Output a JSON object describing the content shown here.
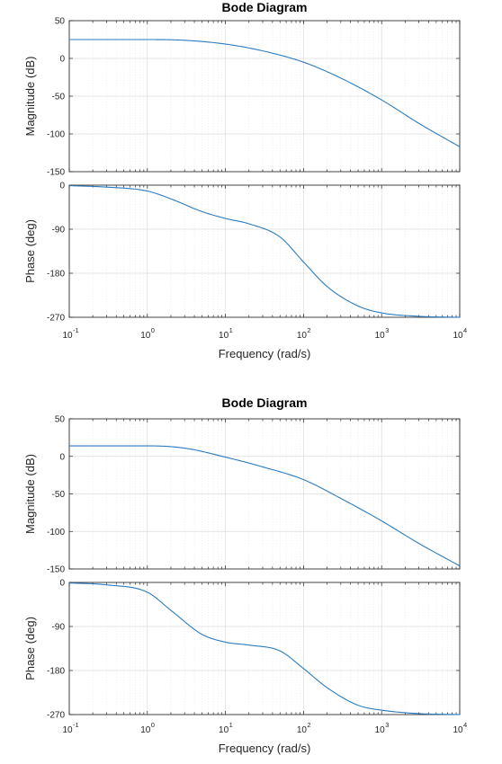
{
  "chart_data": [
    {
      "type": "line",
      "title": "Bode Diagram",
      "xlabel": "Frequency  (rad/s)",
      "xscale": "log",
      "xlim": [
        0.1,
        10000
      ],
      "x_tick_labels": [
        "10",
        "10",
        "10",
        "10",
        "10",
        "10"
      ],
      "x_tick_exponents": [
        "-1",
        "0",
        "1",
        "2",
        "3",
        "4"
      ],
      "grid": true,
      "magnitude": {
        "ylabel": "Magnitude (dB)",
        "ylim": [
          -150,
          50
        ],
        "yticks": [
          "50",
          "0",
          "-50",
          "-100",
          "-150"
        ],
        "x": [
          0.1,
          1,
          3,
          10,
          30,
          100,
          300,
          1000,
          3000,
          10000
        ],
        "y": [
          25,
          25,
          24,
          19,
          10,
          -5,
          -26,
          -55,
          -86,
          -117
        ]
      },
      "phase": {
        "ylabel": "Phase (deg)",
        "ylim": [
          -270,
          0
        ],
        "yticks": [
          "0",
          "-90",
          "-180",
          "-270"
        ],
        "x": [
          0.1,
          0.3,
          1,
          2,
          5,
          10,
          20,
          50,
          100,
          200,
          500,
          1000,
          3000,
          10000
        ],
        "y": [
          -1,
          -4,
          -12,
          -28,
          -54,
          -68,
          -79,
          -106,
          -157,
          -207,
          -247,
          -261,
          -268,
          -270
        ]
      }
    },
    {
      "type": "line",
      "title": "Bode Diagram",
      "xlabel": "Frequency  (rad/s)",
      "xscale": "log",
      "xlim": [
        0.1,
        10000
      ],
      "x_tick_labels": [
        "10",
        "10",
        "10",
        "10",
        "10",
        "10"
      ],
      "x_tick_exponents": [
        "-1",
        "0",
        "1",
        "2",
        "3",
        "4"
      ],
      "grid": true,
      "magnitude": {
        "ylabel": "Magnitude (dB)",
        "ylim": [
          -150,
          50
        ],
        "yticks": [
          "50",
          "0",
          "-50",
          "-100",
          "-150"
        ],
        "x": [
          0.1,
          1,
          3,
          10,
          30,
          100,
          300,
          1000,
          3000,
          10000
        ],
        "y": [
          14,
          14,
          11,
          -1,
          -14,
          -31,
          -56,
          -86,
          -116,
          -146
        ]
      },
      "phase": {
        "ylabel": "Phase (deg)",
        "ylim": [
          -270,
          0
        ],
        "yticks": [
          "0",
          "-90",
          "-180",
          "-270"
        ],
        "x": [
          0.1,
          0.3,
          1,
          2,
          5,
          10,
          20,
          50,
          100,
          200,
          500,
          1000,
          3000,
          10000
        ],
        "y": [
          -1,
          -5,
          -20,
          -57,
          -106,
          -122,
          -128,
          -140,
          -176,
          -215,
          -251,
          -261,
          -268,
          -270
        ]
      }
    }
  ]
}
